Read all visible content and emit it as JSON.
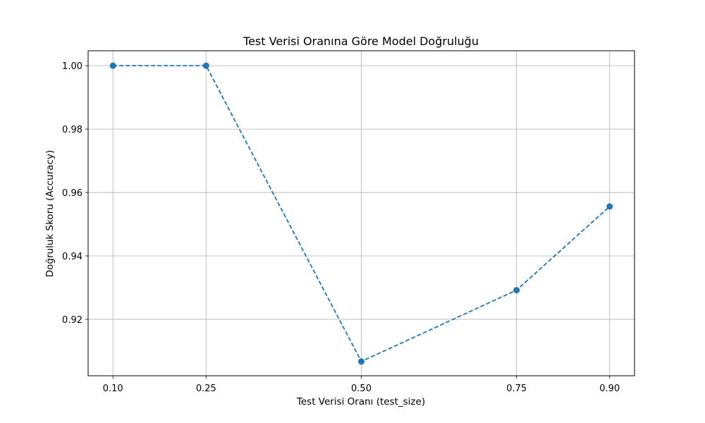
{
  "chart_data": {
    "type": "line",
    "title": "Test Verisi Oranına Göre Model Doğruluğu",
    "xlabel": "Test Verisi Oranı (test_size)",
    "ylabel": "Doğruluk Skoru (Accuracy)",
    "x": [
      0.1,
      0.25,
      0.5,
      0.75,
      0.9
    ],
    "x_tick_labels": [
      "0.10",
      "0.25",
      "0.50",
      "0.75",
      "0.90"
    ],
    "xlim": [
      0.06,
      0.94
    ],
    "yticks": [
      0.92,
      0.94,
      0.96,
      0.98,
      1.0
    ],
    "y_tick_labels": [
      "0.92",
      "0.94",
      "0.96",
      "0.98",
      "1.00"
    ],
    "ylim": [
      0.9022,
      1.0047
    ],
    "series": [
      {
        "values": [
          1.0,
          1.0,
          0.9067,
          0.9292,
          0.9556
        ]
      }
    ],
    "line_style": "dashed",
    "marker": "circle",
    "grid": true,
    "colors": {
      "series": "#1f77b4",
      "grid": "#b0b0b0",
      "axes": "#000000"
    }
  }
}
